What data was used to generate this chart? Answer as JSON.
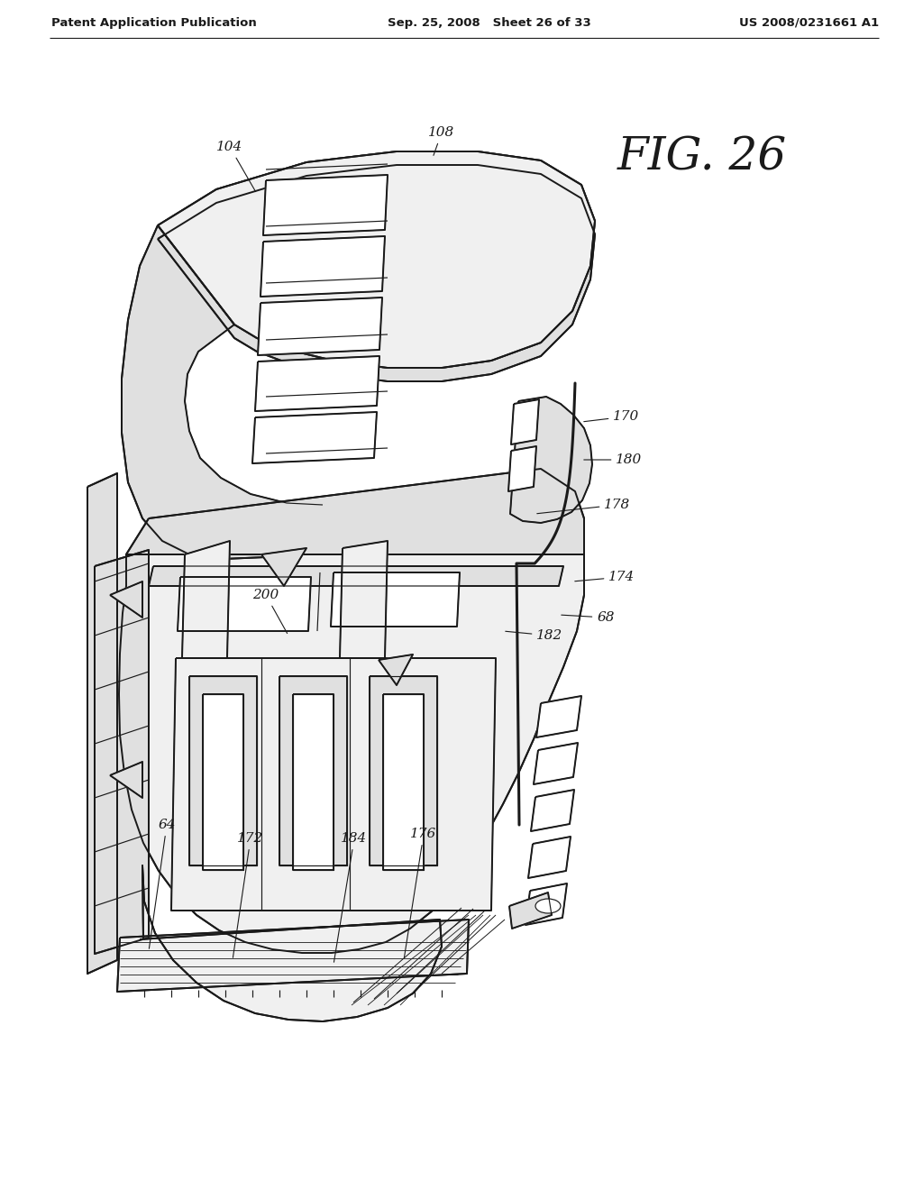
{
  "bg_color": "#ffffff",
  "line_color": "#1a1a1a",
  "header_left": "Patent Application Publication",
  "header_center": "Sep. 25, 2008   Sheet 26 of 33",
  "header_right": "US 2008/0231661 A1",
  "fig_label": "FIG. 26",
  "lw_main": 1.4,
  "lw_thin": 0.85,
  "lw_thick": 2.2
}
